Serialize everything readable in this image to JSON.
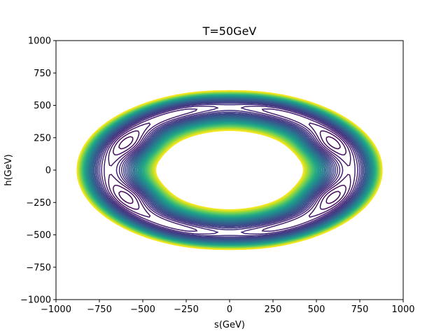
{
  "chart_data": {
    "type": "contour",
    "title": "T=50GeV",
    "xlabel": "s(GeV)",
    "ylabel": "h(GeV)",
    "xlim": [
      -1000,
      1000
    ],
    "ylim": [
      -1000,
      1000
    ],
    "xticks": [
      -1000,
      -750,
      -500,
      -250,
      0,
      250,
      500,
      750,
      1000
    ],
    "yticks": [
      -1000,
      -750,
      -500,
      -250,
      0,
      250,
      500,
      750,
      1000
    ],
    "xtick_labels": [
      "−1000",
      "−750",
      "−500",
      "−250",
      "0",
      "250",
      "500",
      "750",
      "1000"
    ],
    "ytick_labels": [
      "−1000",
      "−750",
      "−500",
      "−250",
      "0",
      "250",
      "500",
      "750",
      "1000"
    ],
    "grid": false,
    "colormap": "viridis",
    "outer_boundary": {
      "s_extent": [
        -880,
        880
      ],
      "h_extent": [
        -610,
        620
      ]
    },
    "central_minimum": {
      "s": 0,
      "h": 0
    },
    "local_minima": [
      {
        "s": -490,
        "h": 170
      },
      {
        "s": -490,
        "h": -170
      },
      {
        "s": 490,
        "h": 170
      },
      {
        "s": 490,
        "h": -170
      }
    ],
    "saddle_points": [
      {
        "s": 0,
        "h": 420
      },
      {
        "s": 0,
        "h": -420
      },
      {
        "s": -570,
        "h": 0
      },
      {
        "s": 570,
        "h": 0
      }
    ]
  }
}
